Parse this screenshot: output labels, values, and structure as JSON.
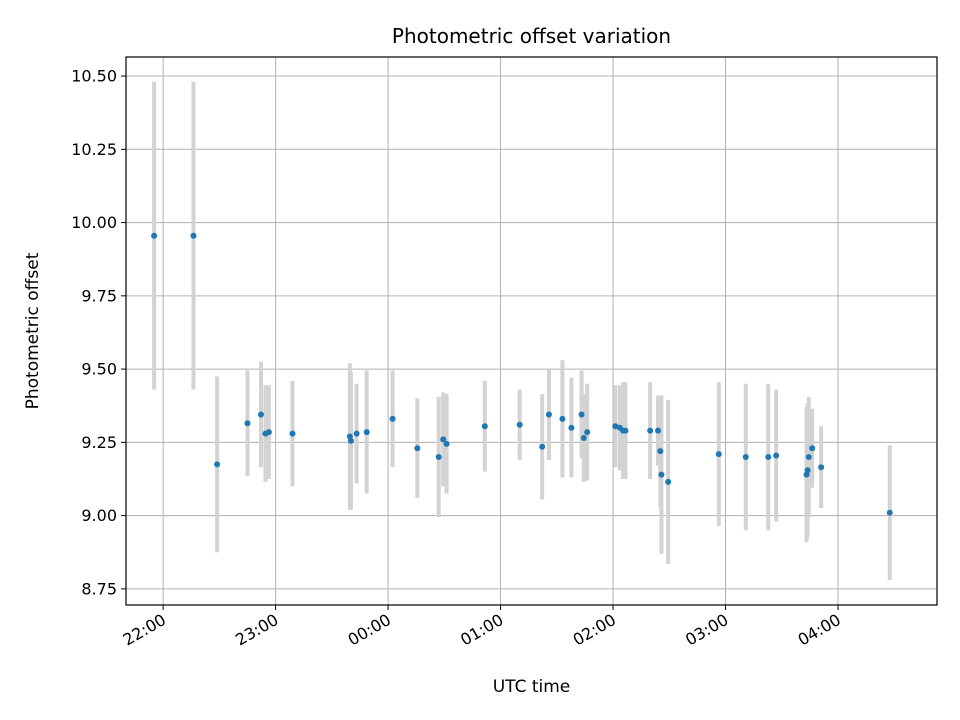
{
  "chart_data": {
    "type": "scatter",
    "title": "Photometric offset variation",
    "xlabel": "UTC time",
    "ylabel": "Photometric offset",
    "x_unit": "hours since 00:00 UTC",
    "xlim": [
      -2.33,
      4.88
    ],
    "ylim": [
      8.695,
      10.565
    ],
    "grid": true,
    "xticks": [
      {
        "value": -2,
        "label": "22:00"
      },
      {
        "value": -1,
        "label": "23:00"
      },
      {
        "value": 0,
        "label": "00:00"
      },
      {
        "value": 1,
        "label": "01:00"
      },
      {
        "value": 2,
        "label": "02:00"
      },
      {
        "value": 3,
        "label": "03:00"
      },
      {
        "value": 4,
        "label": "04:00"
      }
    ],
    "yticks": [
      {
        "value": 8.75,
        "label": "8.75"
      },
      {
        "value": 9.0,
        "label": "9.00"
      },
      {
        "value": 9.25,
        "label": "9.25"
      },
      {
        "value": 9.5,
        "label": "9.50"
      },
      {
        "value": 9.75,
        "label": "9.75"
      },
      {
        "value": 10.0,
        "label": "10.00"
      },
      {
        "value": 10.25,
        "label": "10.25"
      },
      {
        "value": 10.5,
        "label": "10.50"
      }
    ],
    "colors": {
      "point": "#1f77b4",
      "errorbar": "#d3d3d3",
      "grid": "#b0b0b0",
      "axis": "#000000"
    },
    "points": [
      {
        "x": -2.08,
        "y": 9.955,
        "err": 0.525
      },
      {
        "x": -1.73,
        "y": 9.955,
        "err": 0.525
      },
      {
        "x": -1.52,
        "y": 9.175,
        "err": 0.3
      },
      {
        "x": -1.25,
        "y": 9.315,
        "err": 0.18
      },
      {
        "x": -1.13,
        "y": 9.345,
        "err": 0.18
      },
      {
        "x": -1.09,
        "y": 9.28,
        "err": 0.165
      },
      {
        "x": -1.06,
        "y": 9.285,
        "err": 0.16
      },
      {
        "x": -0.85,
        "y": 9.28,
        "err": 0.18
      },
      {
        "x": -0.34,
        "y": 9.27,
        "err": 0.25
      },
      {
        "x": -0.33,
        "y": 9.255,
        "err": 0.235
      },
      {
        "x": -0.28,
        "y": 9.28,
        "err": 0.17
      },
      {
        "x": -0.19,
        "y": 9.285,
        "err": 0.21
      },
      {
        "x": 0.04,
        "y": 9.33,
        "err": 0.165
      },
      {
        "x": 0.26,
        "y": 9.23,
        "err": 0.17
      },
      {
        "x": 0.45,
        "y": 9.2,
        "err": 0.205
      },
      {
        "x": 0.49,
        "y": 9.26,
        "err": 0.16
      },
      {
        "x": 0.52,
        "y": 9.245,
        "err": 0.17
      },
      {
        "x": 0.86,
        "y": 9.305,
        "err": 0.155
      },
      {
        "x": 1.17,
        "y": 9.31,
        "err": 0.12
      },
      {
        "x": 1.37,
        "y": 9.235,
        "err": 0.18
      },
      {
        "x": 1.43,
        "y": 9.345,
        "err": 0.155
      },
      {
        "x": 1.55,
        "y": 9.33,
        "err": 0.2
      },
      {
        "x": 1.63,
        "y": 9.3,
        "err": 0.17
      },
      {
        "x": 1.72,
        "y": 9.345,
        "err": 0.15
      },
      {
        "x": 1.74,
        "y": 9.265,
        "err": 0.15
      },
      {
        "x": 1.77,
        "y": 9.285,
        "err": 0.165
      },
      {
        "x": 2.02,
        "y": 9.305,
        "err": 0.14
      },
      {
        "x": 2.06,
        "y": 9.3,
        "err": 0.145
      },
      {
        "x": 2.09,
        "y": 9.29,
        "err": 0.165
      },
      {
        "x": 2.11,
        "y": 9.29,
        "err": 0.165
      },
      {
        "x": 2.33,
        "y": 9.29,
        "err": 0.165
      },
      {
        "x": 2.4,
        "y": 9.29,
        "err": 0.12
      },
      {
        "x": 2.42,
        "y": 9.22,
        "err": 0.19
      },
      {
        "x": 2.43,
        "y": 9.14,
        "err": 0.27
      },
      {
        "x": 2.49,
        "y": 9.115,
        "err": 0.28
      },
      {
        "x": 2.94,
        "y": 9.21,
        "err": 0.245
      },
      {
        "x": 3.18,
        "y": 9.2,
        "err": 0.25
      },
      {
        "x": 3.38,
        "y": 9.2,
        "err": 0.25
      },
      {
        "x": 3.45,
        "y": 9.205,
        "err": 0.225
      },
      {
        "x": 3.72,
        "y": 9.14,
        "err": 0.23
      },
      {
        "x": 3.73,
        "y": 9.155,
        "err": 0.23
      },
      {
        "x": 3.74,
        "y": 9.2,
        "err": 0.205
      },
      {
        "x": 3.77,
        "y": 9.23,
        "err": 0.135
      },
      {
        "x": 3.85,
        "y": 9.165,
        "err": 0.14
      },
      {
        "x": 4.46,
        "y": 9.01,
        "err": 0.23
      }
    ]
  }
}
